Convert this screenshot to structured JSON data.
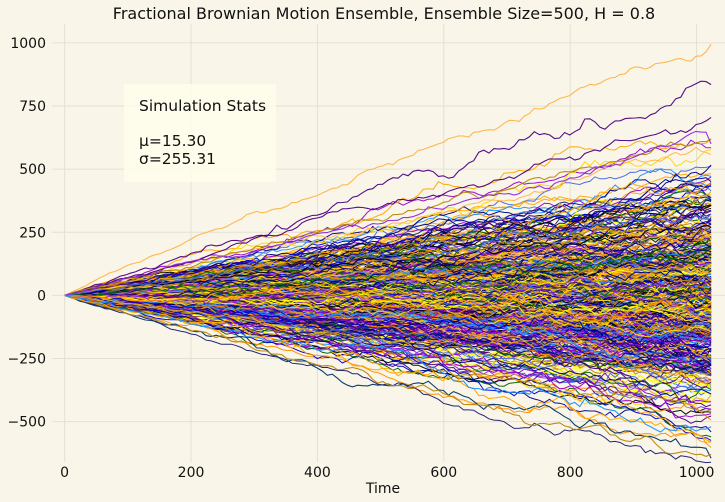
{
  "chart_data": {
    "type": "line",
    "title": "Fractional Brownian Motion Ensemble, Ensemble Size=500, H = 0.8",
    "xlabel": "Time",
    "ylabel": "",
    "xlim": [
      -20,
      1045
    ],
    "ylim": [
      -660,
      1075
    ],
    "x_ticks": [
      0,
      200,
      400,
      600,
      800,
      1000
    ],
    "x_tick_labels": [
      "0",
      "200",
      "400",
      "600",
      "800",
      "1000"
    ],
    "y_ticks": [
      -500,
      -250,
      0,
      250,
      500,
      750,
      1000
    ],
    "y_tick_labels": [
      "−500",
      "−250",
      "0",
      "250",
      "500",
      "750",
      "1000"
    ],
    "grid": true,
    "ensemble": {
      "size": 500,
      "hurst": 0.8,
      "x_start": 0,
      "x_end": 1023,
      "start_value": 0
    },
    "series_colors": [
      "#00008b",
      "#4b0082",
      "#1e90ff",
      "#ffd700",
      "#ffa500",
      "#ffff00",
      "#000080",
      "#8a2be2",
      "#b8860b",
      "#006400",
      "#ff8c00",
      "#0000cd",
      "#daa520",
      "#4169e1",
      "#191970",
      "#9400d3",
      "#ffb347",
      "#000000"
    ],
    "extreme_series": [
      {
        "color": "#ffb347",
        "final": 995
      },
      {
        "color": "#4b0082",
        "final": 835
      },
      {
        "color": "#4b0082",
        "final": 705
      },
      {
        "color": "#b8860b",
        "final": 620
      },
      {
        "color": "#8a2be2",
        "final": 600
      },
      {
        "color": "#003366",
        "final": -645
      },
      {
        "color": "#b8860b",
        "final": -630
      },
      {
        "color": "#ffa500",
        "final": -580
      },
      {
        "color": "#1e90ff",
        "final": -520
      }
    ],
    "annotation": {
      "title": "Simulation Stats",
      "mean_label": "μ=15.30",
      "std_label": "σ=255.31"
    }
  },
  "colors": {
    "background": "#f9f6e9",
    "grid": "#e3e0d4",
    "stats_box": "#fffdea"
  }
}
